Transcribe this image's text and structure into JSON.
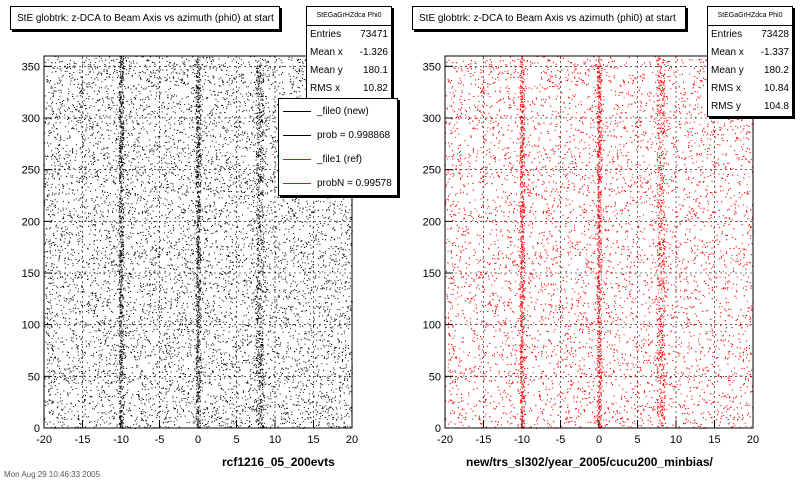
{
  "footer": "Mon Aug 29 10:46:33 2005",
  "legend": {
    "items": [
      {
        "label": "_file0 (new)",
        "color": "#000000"
      },
      {
        "label": "prob = 0.998868",
        "color": "#000000"
      },
      {
        "label": "_file1 (ref)",
        "color": "#ff0000"
      },
      {
        "label": "probN = 0.99578",
        "color": "#ff0000"
      }
    ]
  },
  "chart_data": [
    {
      "type": "scatter",
      "title": "StE globtrk: z-DCA to Beam Axis vs azimuth (phi0) at start",
      "xlabel": "rcf1216_05_200evts",
      "ylabel": "",
      "xlim": [
        -20,
        20
      ],
      "ylim": [
        0,
        360
      ],
      "x_ticks": [
        -20,
        -15,
        -10,
        -5,
        0,
        5,
        10,
        15,
        20
      ],
      "y_ticks": [
        0,
        50,
        100,
        150,
        200,
        250,
        300,
        350
      ],
      "grid": true,
      "marker_color": "#000000",
      "stats": {
        "name": "StEGaGrHZdca Phi0",
        "rows": [
          {
            "label": "Entries",
            "value": "73471"
          },
          {
            "label": "Mean x",
            "value": "-1.326"
          },
          {
            "label": "Mean y",
            "value": "180.1"
          },
          {
            "label": "RMS x",
            "value": "10.82"
          }
        ]
      },
      "density_bands": [
        {
          "x": -10,
          "width": 0.6
        },
        {
          "x": 0,
          "width": 0.6
        },
        {
          "x": 8,
          "width": 1.0
        }
      ]
    },
    {
      "type": "scatter",
      "title": "StE globtrk: z-DCA to Beam Axis vs azimuth (phi0) at start",
      "xlabel": "new/trs_sl302/year_2005/cucu200_minbias/",
      "ylabel": "",
      "xlim": [
        -20,
        20
      ],
      "ylim": [
        0,
        360
      ],
      "x_ticks": [
        -20,
        -15,
        -10,
        -5,
        0,
        5,
        10,
        15,
        20
      ],
      "y_ticks": [
        0,
        50,
        100,
        150,
        200,
        250,
        300,
        350
      ],
      "grid": true,
      "marker_color": "#ff0000",
      "stats": {
        "name": "StEGaGrHZdca Phi0",
        "rows": [
          {
            "label": "Entries",
            "value": "73428"
          },
          {
            "label": "Mean x",
            "value": "-1.337"
          },
          {
            "label": "Mean y",
            "value": "180.2"
          },
          {
            "label": "RMS x",
            "value": "10.84"
          },
          {
            "label": "RMS y",
            "value": "104.8"
          }
        ]
      },
      "density_bands": [
        {
          "x": -10,
          "width": 0.6
        },
        {
          "x": 0,
          "width": 0.6
        },
        {
          "x": 8,
          "width": 1.0
        }
      ]
    }
  ]
}
